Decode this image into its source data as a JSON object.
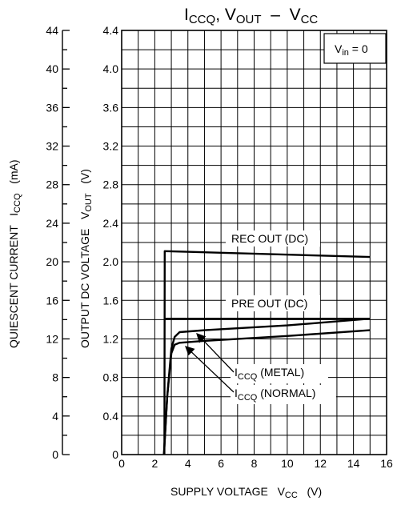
{
  "chart_data": {
    "type": "line",
    "title": {
      "main": "I",
      "sub1": "CCQ",
      "mid": ", V",
      "sub2": "OUT",
      "dash": "  –  V",
      "sub3": "CC"
    },
    "condition": {
      "main": "V",
      "sub": "in",
      "rest": " = 0"
    },
    "xlabel": {
      "main": "SUPPLY VOLTAGE   V",
      "sub": "CC",
      "unit": "   (V)"
    },
    "ylabel_left": {
      "main": "QUIESCENT CURRENT   I",
      "sub": "CCQ",
      "unit": "   (mA)"
    },
    "ylabel_right": {
      "main": "OUTPUT DC VOLTAGE   V",
      "sub": "OUT",
      "unit": "   (V)"
    },
    "x_ticks": [
      "0",
      "2",
      "4",
      "6",
      "8",
      "10",
      "12",
      "14",
      "16"
    ],
    "y_left_ticks": [
      "0",
      "4",
      "8",
      "12",
      "16",
      "20",
      "24",
      "28",
      "32",
      "36",
      "40",
      "44"
    ],
    "y_right_ticks": [
      "0",
      "0.4",
      "0.8",
      "1.2",
      "1.6",
      "2.0",
      "2.4",
      "2.8",
      "3.2",
      "3.6",
      "4.0",
      "4.4"
    ],
    "xlim": [
      0,
      16
    ],
    "ylim_left": [
      0,
      44
    ],
    "ylim_right": [
      0,
      4.4
    ],
    "grid": true,
    "series": [
      {
        "name": "REC OUT (DC)",
        "axis": "right",
        "x": [
          2.58,
          2.6,
          15
        ],
        "y": [
          0,
          2.11,
          2.05
        ]
      },
      {
        "name": "PRE OUT (DC)",
        "axis": "right",
        "x": [
          2.58,
          15
        ],
        "y": [
          1.41,
          1.41
        ]
      },
      {
        "name": "ICCQ (METAL)",
        "axis": "left",
        "x": [
          2.55,
          2.75,
          3.0,
          3.2,
          3.5,
          5,
          10,
          15
        ],
        "y": [
          0,
          6,
          11,
          12.2,
          12.7,
          12.9,
          13.4,
          14.1
        ]
      },
      {
        "name": "ICCQ (NORMAL)",
        "axis": "left",
        "x": [
          2.55,
          2.75,
          3.0,
          3.2,
          3.5,
          5,
          10,
          15
        ],
        "y": [
          0,
          6,
          10.5,
          11.4,
          11.6,
          11.8,
          12.3,
          12.9
        ]
      }
    ],
    "annotations": {
      "rec_out": "REC OUT (DC)",
      "pre_out": "PRE OUT (DC)",
      "metal": {
        "main": "I",
        "sub": "CCQ",
        "rest": " (METAL)"
      },
      "normal": {
        "main": "I",
        "sub": "CCQ",
        "rest": " (NORMAL)"
      }
    }
  }
}
